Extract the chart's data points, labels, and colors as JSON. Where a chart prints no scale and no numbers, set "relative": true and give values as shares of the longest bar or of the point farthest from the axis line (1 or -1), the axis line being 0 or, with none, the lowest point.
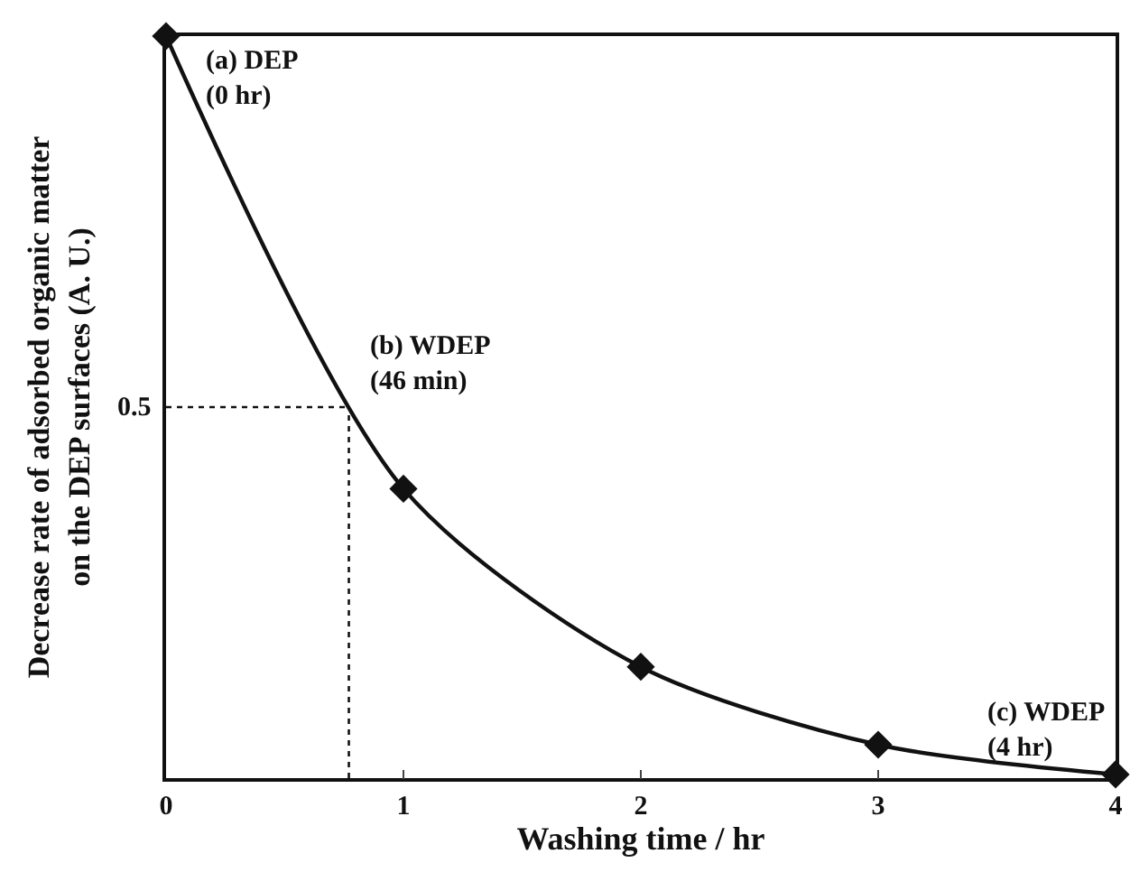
{
  "chart_data": {
    "type": "line",
    "xlabel": "Washing time / hr",
    "ylabel": "Decrease rate of adsorbed organic matter\non the DEP surfaces (A. U.)",
    "x": [
      0,
      1,
      2,
      3,
      4
    ],
    "series": [
      {
        "color": "#111111",
        "values": [
          1,
          0.39,
          0.15,
          0.045,
          0.005
        ]
      }
    ],
    "relative": true,
    "xlim": [
      0,
      4
    ],
    "xticks": [
      0,
      1,
      2,
      3,
      4
    ],
    "marker": "diamond",
    "line_style": "solid",
    "grid": false,
    "ref_lines": [
      {
        "axis": "y",
        "value": 0.5,
        "label": "0.5",
        "line_style": "dotted",
        "color": "#111111"
      },
      {
        "axis": "x",
        "value": 0.77,
        "line_style": "dotted",
        "color": "#111111"
      }
    ],
    "annotations": [
      {
        "text": "(a) DEP\n(0 hr)",
        "x": 0,
        "y": 1
      },
      {
        "text": "(b) WDEP\n(46 min)",
        "x": 0.77,
        "y": 0.5
      },
      {
        "text": "(c) WDEP\n(4 hr)",
        "x": 4,
        "y": 0.005
      }
    ]
  }
}
